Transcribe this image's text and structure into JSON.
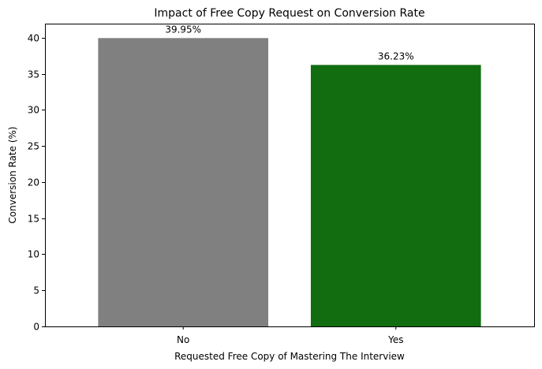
{
  "chart_data": {
    "type": "bar",
    "title": "Impact of Free Copy Request on Conversion Rate",
    "xlabel": "Requested Free Copy of Mastering The Interview",
    "ylabel": "Conversion Rate (%)",
    "categories": [
      "No",
      "Yes"
    ],
    "values": [
      39.95,
      36.23
    ],
    "data_labels": [
      "39.95%",
      "36.23%"
    ],
    "colors": [
      "#808080",
      "#116d10"
    ],
    "ylim": [
      0,
      41.95
    ],
    "yticks": [
      0,
      5,
      10,
      15,
      20,
      25,
      30,
      35,
      40
    ],
    "ytick_labels": [
      "0",
      "5",
      "10",
      "15",
      "20",
      "25",
      "30",
      "35",
      "40"
    ],
    "grid": false,
    "legend": "none"
  }
}
